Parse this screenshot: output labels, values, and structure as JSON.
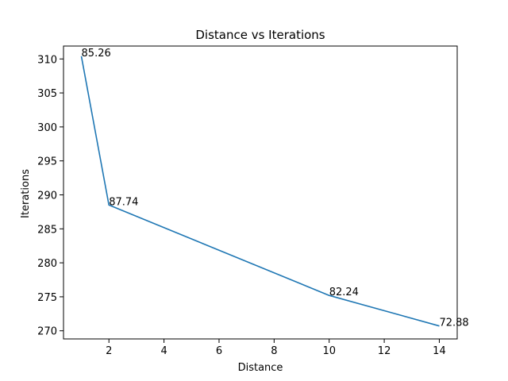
{
  "chart_data": {
    "type": "line",
    "title": "Distance vs Iterations",
    "xlabel": "Distance",
    "ylabel": "Iterations",
    "xlim": [
      0.35,
      14.65
    ],
    "ylim": [
      268.8,
      311.9
    ],
    "xticks": [
      2,
      4,
      6,
      8,
      10,
      12,
      14
    ],
    "yticks": [
      270,
      275,
      280,
      285,
      290,
      295,
      300,
      305,
      310
    ],
    "grid": false,
    "series": [
      {
        "color": "#1f77b4",
        "x": [
          1,
          2,
          10,
          14
        ],
        "y": [
          310.4,
          288.5,
          275.2,
          270.7
        ],
        "labels": [
          "85.26",
          "87.74",
          "82.24",
          "72.88"
        ]
      }
    ]
  }
}
